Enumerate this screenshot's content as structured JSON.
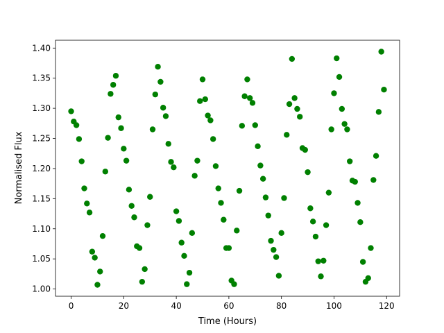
{
  "chart_data": {
    "type": "scatter",
    "xlabel": "Time (Hours)",
    "ylabel": "Normalised Flux",
    "color": "#008000",
    "x": [
      0,
      1,
      2,
      3,
      4,
      5,
      6,
      7,
      8,
      9,
      10,
      11,
      12,
      13,
      14,
      15,
      16,
      17,
      18,
      19,
      20,
      21,
      22,
      23,
      24,
      25,
      26,
      27,
      28,
      29,
      30,
      31,
      32,
      33,
      34,
      35,
      36,
      37,
      38,
      39,
      40,
      41,
      42,
      43,
      44,
      45,
      46,
      47,
      48,
      49,
      50,
      51,
      52,
      53,
      54,
      55,
      56,
      57,
      58,
      59,
      60,
      61,
      62,
      63,
      64,
      65,
      66,
      67,
      68,
      69,
      70,
      71,
      72,
      73,
      74,
      75,
      76,
      77,
      78,
      79,
      80,
      81,
      82,
      83,
      84,
      85,
      86,
      87,
      88,
      89,
      90,
      91,
      92,
      93,
      94,
      95,
      96,
      97,
      98,
      99,
      100,
      101,
      102,
      103,
      104,
      105,
      106,
      107,
      108,
      109,
      110,
      111,
      112,
      113,
      114,
      115,
      116,
      117,
      118,
      119
    ],
    "values": [
      1.295,
      1.278,
      1.272,
      1.249,
      1.212,
      1.167,
      1.142,
      1.127,
      1.062,
      1.052,
      1.007,
      1.029,
      1.088,
      1.195,
      1.251,
      1.324,
      1.339,
      1.354,
      1.285,
      1.267,
      1.233,
      1.213,
      1.165,
      1.138,
      1.119,
      1.071,
      1.068,
      1.012,
      1.033,
      1.106,
      1.153,
      1.265,
      1.323,
      1.369,
      1.344,
      1.301,
      1.287,
      1.241,
      1.211,
      1.202,
      1.129,
      1.113,
      1.077,
      1.055,
      1.008,
      1.027,
      1.093,
      1.188,
      1.213,
      1.312,
      1.348,
      1.315,
      1.288,
      1.28,
      1.249,
      1.204,
      1.167,
      1.143,
      1.115,
      1.068,
      1.068,
      1.014,
      1.008,
      1.097,
      1.163,
      1.271,
      1.32,
      1.348,
      1.317,
      1.309,
      1.272,
      1.237,
      1.205,
      1.183,
      1.152,
      1.122,
      1.08,
      1.065,
      1.053,
      1.022,
      1.093,
      1.151,
      1.256,
      1.307,
      1.382,
      1.317,
      1.299,
      1.286,
      1.234,
      1.231,
      1.194,
      1.134,
      1.112,
      1.087,
      1.046,
      1.021,
      1.047,
      1.106,
      1.16,
      1.265,
      1.325,
      1.383,
      1.352,
      1.299,
      1.274,
      1.265,
      1.212,
      1.18,
      1.178,
      1.143,
      1.111,
      1.045,
      1.012,
      1.018,
      1.068,
      1.181,
      1.221,
      1.294,
      1.394,
      1.331
    ],
    "xlim": [
      -5.95,
      124.95
    ],
    "ylim": [
      0.988,
      1.413
    ],
    "xticks": [
      0,
      20,
      40,
      60,
      80,
      100,
      120
    ],
    "yticks": [
      {
        "value": 1.0,
        "label": "1.00"
      },
      1.05,
      {
        "value": 1.1,
        "label": "1.10"
      },
      1.15,
      {
        "value": 1.2,
        "label": "1.20"
      },
      1.25,
      {
        "value": 1.3,
        "label": "1.30"
      },
      1.35,
      {
        "value": 1.4,
        "label": "1.40"
      }
    ]
  }
}
